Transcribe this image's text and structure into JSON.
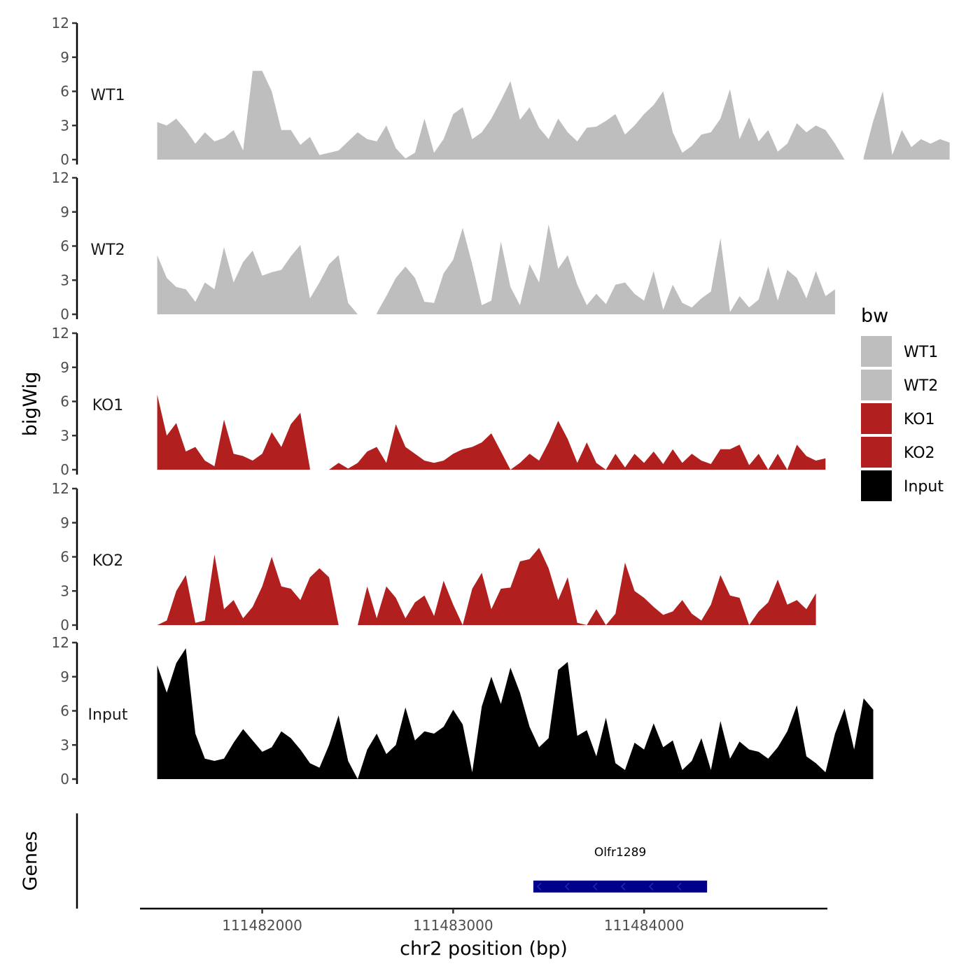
{
  "chart_data": {
    "type": "area",
    "title": "",
    "xlabel": "chr2 position (bp)",
    "ylabel": "bigWig",
    "genes_axis_label": "Genes",
    "xlim": [
      111481360,
      111484960
    ],
    "ylim": [
      0,
      12
    ],
    "x_ticks": [
      111482000,
      111483000,
      111484000
    ],
    "x_tick_labels": [
      "111482000",
      "111483000",
      "111484000"
    ],
    "y_ticks": [
      0,
      3,
      6,
      9,
      12
    ],
    "y_tick_labels": [
      "0",
      "3",
      "6",
      "9",
      "12"
    ],
    "legend": {
      "title": "bw",
      "position": "right",
      "entries": [
        {
          "label": "WT1",
          "color": "#bebebe"
        },
        {
          "label": "WT2",
          "color": "#bebebe"
        },
        {
          "label": "KO1",
          "color": "#b21f1f"
        },
        {
          "label": "KO2",
          "color": "#b21f1f"
        },
        {
          "label": "Input",
          "color": "#000000"
        }
      ]
    },
    "series": [
      {
        "name": "WT1",
        "color": "#bebebe",
        "x_start": 111481450,
        "x_step": 50,
        "values": [
          3.3,
          3.0,
          3.6,
          2.6,
          1.4,
          2.4,
          1.6,
          1.9,
          2.6,
          0.8,
          7.8,
          7.8,
          6.0,
          2.6,
          2.6,
          1.3,
          2.0,
          0.4,
          0.6,
          0.8,
          1.6,
          2.4,
          1.8,
          1.6,
          3.0,
          1.0,
          0.1,
          0.6,
          3.6,
          0.6,
          1.8,
          4.0,
          4.6,
          1.8,
          2.4,
          3.6,
          5.2,
          6.9,
          3.5,
          4.6,
          2.8,
          1.8,
          3.6,
          2.4,
          1.6,
          2.8,
          2.9,
          3.4,
          4.0,
          2.2,
          3.0,
          4.0,
          4.8,
          6.0,
          2.4,
          0.6,
          1.2,
          2.2,
          2.4,
          3.6,
          6.2,
          1.8,
          3.7,
          1.6,
          2.6,
          0.7,
          1.4,
          3.2,
          2.4,
          3.0,
          2.6,
          1.4,
          0.0,
          null,
          0.2,
          3.4,
          6.0,
          0.4,
          2.6,
          1.1,
          1.8,
          1.4,
          1.8,
          1.5
        ]
      },
      {
        "name": "WT2",
        "color": "#bebebe",
        "x_start": 111481450,
        "x_step": 50,
        "values": [
          5.2,
          3.2,
          2.4,
          2.2,
          1.1,
          2.8,
          2.2,
          5.9,
          2.8,
          4.6,
          5.6,
          3.4,
          3.7,
          3.9,
          5.1,
          6.1,
          1.4,
          2.8,
          4.4,
          5.2,
          1.0,
          0.0,
          null,
          0.1,
          1.6,
          3.2,
          4.2,
          3.2,
          1.1,
          1.0,
          3.6,
          4.8,
          7.6,
          4.4,
          0.8,
          1.2,
          6.4,
          2.4,
          0.8,
          4.4,
          2.8,
          7.9,
          4.0,
          5.2,
          2.6,
          0.8,
          1.8,
          0.9,
          2.6,
          2.8,
          1.8,
          1.2,
          3.8,
          0.4,
          2.6,
          1.0,
          0.6,
          1.4,
          2.0,
          6.7,
          0.2,
          1.6,
          0.6,
          1.3,
          4.2,
          1.2,
          3.9,
          3.2,
          1.4,
          3.8,
          1.6,
          2.2
        ]
      },
      {
        "name": "KO1",
        "color": "#b21f1f",
        "x_start": 111481450,
        "x_step": 50,
        "values": [
          6.6,
          3.0,
          4.1,
          1.6,
          2.0,
          0.8,
          0.3,
          4.4,
          1.4,
          1.2,
          0.8,
          1.4,
          3.3,
          2.0,
          4.0,
          5.0,
          0.1,
          null,
          0.0,
          0.6,
          0.1,
          0.6,
          1.6,
          2.0,
          0.6,
          4.0,
          2.0,
          1.4,
          0.8,
          0.6,
          0.8,
          1.4,
          1.8,
          2.0,
          2.4,
          3.2,
          1.6,
          0.0,
          0.6,
          1.4,
          0.8,
          2.4,
          4.3,
          2.7,
          0.6,
          2.4,
          0.6,
          0.0,
          1.4,
          0.2,
          1.4,
          0.6,
          1.6,
          0.5,
          1.8,
          0.6,
          1.4,
          0.8,
          0.5,
          1.8,
          1.8,
          2.2,
          0.4,
          1.4,
          0.0,
          1.4,
          0.0,
          2.2,
          1.2,
          0.8,
          1.0
        ]
      },
      {
        "name": "KO2",
        "color": "#b21f1f",
        "x_start": 111481450,
        "x_step": 50,
        "values": [
          0.0,
          0.4,
          3.0,
          4.4,
          0.2,
          0.4,
          6.2,
          1.4,
          2.2,
          0.6,
          1.6,
          3.4,
          6.0,
          3.4,
          3.2,
          2.2,
          4.2,
          5.0,
          4.2,
          0.0,
          null,
          0.0,
          3.4,
          0.6,
          3.4,
          2.4,
          0.6,
          2.0,
          2.6,
          0.8,
          3.9,
          1.8,
          0.0,
          3.2,
          4.6,
          1.4,
          3.2,
          3.3,
          5.6,
          5.8,
          6.8,
          5.0,
          2.2,
          4.2,
          0.2,
          0.0,
          1.4,
          0.0,
          1.0,
          5.5,
          3.0,
          2.4,
          1.6,
          0.9,
          1.2,
          2.2,
          1.0,
          0.4,
          1.8,
          4.4,
          2.6,
          2.4,
          0.0,
          1.2,
          2.0,
          4.0,
          1.8,
          2.2,
          1.4,
          2.8
        ]
      },
      {
        "name": "Input",
        "color": "#000000",
        "x_start": 111481450,
        "x_step": 50,
        "values": [
          10.0,
          7.6,
          10.2,
          11.5,
          4.0,
          1.8,
          1.6,
          1.8,
          3.2,
          4.4,
          3.4,
          2.4,
          2.8,
          4.2,
          3.6,
          2.6,
          1.4,
          1.0,
          3.0,
          5.6,
          1.6,
          0.0,
          2.6,
          4.0,
          2.2,
          3.0,
          6.3,
          3.4,
          4.2,
          4.0,
          4.6,
          6.1,
          4.8,
          0.6,
          6.4,
          9.0,
          6.6,
          9.8,
          7.6,
          4.6,
          2.8,
          3.6,
          9.6,
          10.3,
          3.8,
          4.3,
          2.0,
          5.4,
          1.4,
          0.8,
          3.2,
          2.6,
          4.9,
          2.8,
          3.4,
          0.8,
          1.6,
          3.6,
          0.8,
          5.1,
          1.8,
          3.3,
          2.6,
          2.4,
          1.8,
          2.8,
          4.2,
          6.5,
          2.0,
          1.4,
          0.6,
          4.0,
          6.2,
          2.6,
          7.1,
          6.1
        ]
      }
    ],
    "genes": [
      {
        "name": "Olfr1289",
        "start": 111483420,
        "end": 111484330,
        "strand": "-",
        "color": "#00008b"
      }
    ]
  }
}
